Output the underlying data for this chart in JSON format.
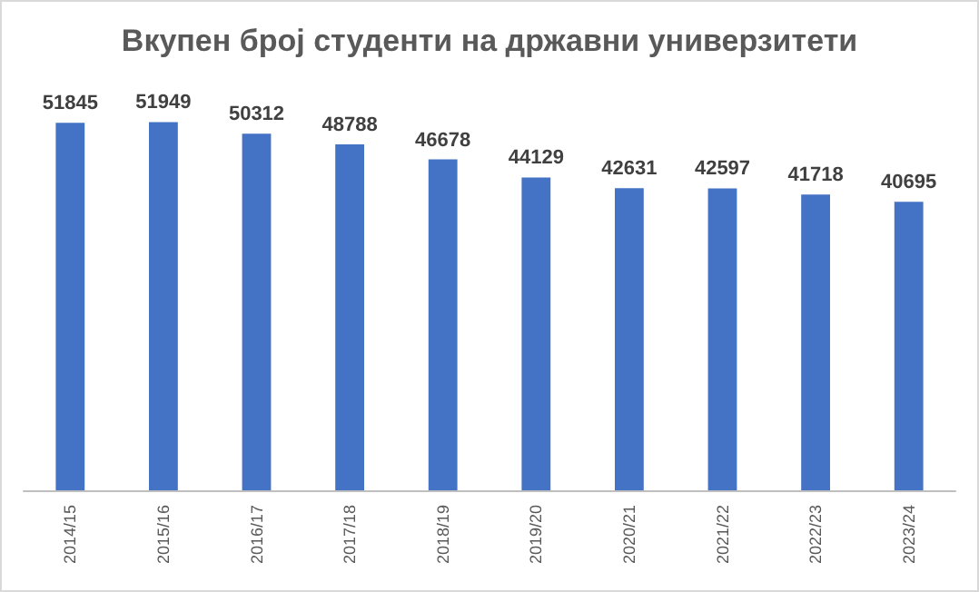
{
  "chart_data": {
    "type": "bar",
    "title": "Вкупен број студенти на државни универзитети",
    "categories": [
      "2014/15",
      "2015/16",
      "2016/17",
      "2017/18",
      "2018/19",
      "2019/20",
      "2020/21",
      "2021/22",
      "2022/23",
      "2023/24"
    ],
    "values": [
      51845,
      51949,
      50312,
      48788,
      46678,
      44129,
      42631,
      42597,
      41718,
      40695
    ],
    "color": "#4472c4",
    "data_labels": true
  }
}
